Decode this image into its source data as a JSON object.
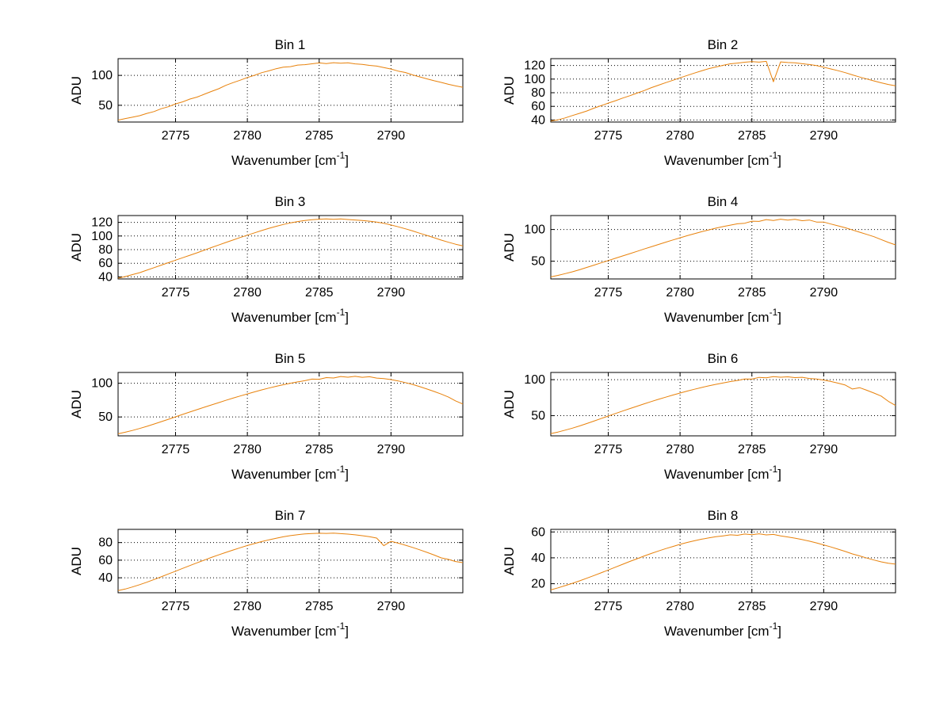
{
  "labels": {
    "xlabel_pre": "Wavenumber [cm",
    "xlabel_sup": "-1",
    "xlabel_post": "]",
    "ylabel": "ADU"
  },
  "style": {
    "line_color": "#E8820C",
    "grid_color": "#000000",
    "axis_color": "#000000",
    "background": "#ffffff"
  },
  "chart_data": [
    {
      "type": "line",
      "title": "Bin 1",
      "xlabel": "Wavenumber [cm^-1]",
      "ylabel": "ADU",
      "xlim": [
        2771,
        2795
      ],
      "xticks": [
        2775,
        2780,
        2785,
        2790
      ],
      "ylim": [
        22,
        128
      ],
      "yticks": [
        50,
        100
      ],
      "x_start": 2771,
      "x_step": 0.5,
      "values": [
        25.2,
        27.8,
        30.1,
        32.6,
        36.4,
        39.5,
        44.2,
        47.6,
        52.3,
        55.8,
        60.4,
        63.7,
        68.5,
        73.1,
        77.6,
        83.4,
        87.8,
        91.9,
        96.4,
        100.2,
        104.5,
        107.6,
        111.2,
        113.8,
        114.6,
        117.3,
        117.9,
        119.4,
        120.8,
        119.6,
        121.3,
        120.4,
        121.0,
        119.2,
        118.4,
        116.8,
        115.5,
        113.0,
        110.6,
        107.2,
        104.8,
        100.9,
        97.5,
        94.2,
        91.0,
        88.3,
        85.1,
        82.4,
        80.2
      ]
    },
    {
      "type": "line",
      "title": "Bin 2",
      "xlabel": "Wavenumber [cm^-1]",
      "ylabel": "ADU",
      "xlim": [
        2771,
        2795
      ],
      "xticks": [
        2775,
        2780,
        2785,
        2790
      ],
      "ylim": [
        37,
        130
      ],
      "yticks": [
        40,
        60,
        80,
        100,
        120
      ],
      "x_start": 2771,
      "x_step": 0.5,
      "values": [
        38.4,
        40.2,
        43.1,
        46.5,
        49.8,
        53.2,
        57.4,
        61.0,
        64.8,
        68.3,
        72.1,
        75.6,
        79.4,
        83.2,
        87.5,
        91.0,
        94.8,
        98.3,
        101.9,
        105.4,
        108.8,
        112.1,
        115.3,
        117.8,
        120.2,
        122.4,
        123.5,
        124.8,
        125.6,
        124.9,
        126.1,
        96.0,
        125.2,
        124.3,
        123.8,
        122.6,
        121.4,
        119.8,
        117.5,
        114.9,
        112.3,
        109.4,
        106.2,
        103.0,
        100.1,
        97.3,
        94.6,
        92.1,
        90.3
      ]
    },
    {
      "type": "line",
      "title": "Bin 3",
      "xlabel": "Wavenumber [cm^-1]",
      "ylabel": "ADU",
      "xlim": [
        2771,
        2795
      ],
      "xticks": [
        2775,
        2780,
        2785,
        2790
      ],
      "ylim": [
        37,
        130
      ],
      "yticks": [
        40,
        60,
        80,
        100,
        120
      ],
      "x_start": 2771,
      "x_step": 0.5,
      "values": [
        38.2,
        40.5,
        43.4,
        46.2,
        49.9,
        53.5,
        57.2,
        60.8,
        64.5,
        68.1,
        71.8,
        75.4,
        79.2,
        83.0,
        86.8,
        90.5,
        94.1,
        97.8,
        101.2,
        104.6,
        108.0,
        111.3,
        114.2,
        116.9,
        119.3,
        121.2,
        122.8,
        123.9,
        124.6,
        125.1,
        124.4,
        125.0,
        124.2,
        123.5,
        122.7,
        121.8,
        120.4,
        118.6,
        116.2,
        113.5,
        110.6,
        107.4,
        104.1,
        100.8,
        97.4,
        94.0,
        90.8,
        87.9,
        85.6
      ]
    },
    {
      "type": "line",
      "title": "Bin 4",
      "xlabel": "Wavenumber [cm^-1]",
      "ylabel": "ADU",
      "xlim": [
        2771,
        2795
      ],
      "xticks": [
        2775,
        2780,
        2785,
        2790
      ],
      "ylim": [
        22,
        122
      ],
      "yticks": [
        50,
        100
      ],
      "x_start": 2771,
      "x_step": 0.5,
      "values": [
        25.3,
        27.6,
        30.4,
        33.2,
        36.5,
        40.1,
        43.8,
        47.4,
        51.0,
        54.6,
        58.2,
        61.9,
        65.5,
        69.2,
        72.8,
        76.4,
        80.0,
        83.5,
        86.9,
        90.2,
        93.4,
        96.5,
        99.4,
        102.1,
        104.6,
        106.9,
        109.0,
        109.9,
        113.1,
        112.8,
        115.6,
        114.2,
        116.3,
        114.8,
        116.0,
        113.9,
        114.9,
        111.8,
        111.7,
        108.6,
        105.8,
        102.7,
        99.3,
        95.8,
        92.2,
        88.6,
        84.1,
        79.6,
        75.8
      ]
    },
    {
      "type": "line",
      "title": "Bin 5",
      "xlabel": "Wavenumber [cm^-1]",
      "ylabel": "ADU",
      "xlim": [
        2771,
        2795
      ],
      "xticks": [
        2775,
        2780,
        2785,
        2790
      ],
      "ylim": [
        22,
        116
      ],
      "yticks": [
        50,
        100
      ],
      "x_start": 2771,
      "x_step": 0.5,
      "values": [
        25.1,
        27.4,
        30.0,
        32.9,
        36.1,
        39.5,
        43.0,
        46.6,
        50.2,
        53.8,
        57.4,
        60.9,
        64.4,
        67.8,
        71.2,
        74.6,
        77.9,
        81.1,
        84.2,
        87.2,
        90.1,
        92.8,
        95.4,
        97.8,
        100.0,
        102.0,
        103.8,
        106.1,
        105.9,
        108.4,
        107.8,
        110.0,
        108.9,
        110.3,
        108.8,
        109.7,
        107.6,
        107.0,
        105.4,
        103.4,
        101.0,
        98.2,
        95.0,
        91.5,
        87.8,
        83.9,
        79.5,
        73.8,
        69.2
      ]
    },
    {
      "type": "line",
      "title": "Bin 6",
      "xlabel": "Wavenumber [cm^-1]",
      "ylabel": "ADU",
      "xlim": [
        2771,
        2795
      ],
      "xticks": [
        2775,
        2780,
        2785,
        2790
      ],
      "ylim": [
        22,
        110
      ],
      "yticks": [
        50,
        100
      ],
      "x_start": 2771,
      "x_step": 0.5,
      "values": [
        25.2,
        27.3,
        29.9,
        32.7,
        35.8,
        39.1,
        42.5,
        46.0,
        49.5,
        53.0,
        56.4,
        59.8,
        63.1,
        66.4,
        69.6,
        72.7,
        75.7,
        78.6,
        81.4,
        84.1,
        86.7,
        89.1,
        91.4,
        93.5,
        95.5,
        97.3,
        98.9,
        101.0,
        100.8,
        103.2,
        102.6,
        104.3,
        103.4,
        104.0,
        102.8,
        103.3,
        101.6,
        100.9,
        99.4,
        97.5,
        95.2,
        92.5,
        87.0,
        88.9,
        85.3,
        81.4,
        77.2,
        70.0,
        64.1
      ]
    },
    {
      "type": "line",
      "title": "Bin 7",
      "xlabel": "Wavenumber [cm^-1]",
      "ylabel": "ADU",
      "xlim": [
        2771,
        2795
      ],
      "xticks": [
        2775,
        2780,
        2785,
        2790
      ],
      "ylim": [
        23,
        95
      ],
      "yticks": [
        40,
        60,
        80
      ],
      "x_start": 2771,
      "x_step": 0.5,
      "values": [
        25.4,
        27.2,
        29.6,
        32.2,
        35.0,
        38.0,
        41.1,
        44.3,
        47.5,
        50.7,
        53.9,
        57.0,
        60.1,
        63.1,
        66.0,
        68.8,
        71.5,
        74.1,
        76.6,
        78.9,
        81.1,
        83.1,
        84.9,
        86.5,
        87.9,
        89.0,
        89.8,
        90.3,
        90.6,
        90.4,
        90.7,
        90.1,
        89.6,
        88.8,
        87.8,
        86.6,
        85.1,
        76.5,
        81.4,
        79.3,
        77.0,
        74.5,
        71.8,
        68.9,
        65.8,
        62.6,
        60.9,
        58.5,
        57.2
      ]
    },
    {
      "type": "line",
      "title": "Bin 8",
      "xlabel": "Wavenumber [cm^-1]",
      "ylabel": "ADU",
      "xlim": [
        2771,
        2795
      ],
      "xticks": [
        2775,
        2780,
        2785,
        2790
      ],
      "ylim": [
        13,
        62
      ],
      "yticks": [
        20,
        40,
        60
      ],
      "x_start": 2771,
      "x_step": 0.5,
      "values": [
        15.2,
        16.8,
        18.5,
        20.3,
        22.2,
        24.2,
        26.3,
        28.4,
        30.6,
        32.8,
        35.0,
        37.2,
        39.3,
        41.4,
        43.4,
        45.3,
        47.1,
        48.8,
        50.4,
        51.9,
        53.2,
        54.4,
        55.4,
        56.3,
        57.0,
        57.8,
        57.4,
        58.4,
        57.9,
        58.6,
        57.7,
        58.1,
        56.9,
        56.1,
        55.2,
        54.1,
        52.9,
        51.5,
        50.0,
        48.4,
        46.7,
        44.9,
        43.0,
        41.5,
        39.8,
        38.3,
        36.9,
        35.8,
        35.1
      ]
    }
  ]
}
